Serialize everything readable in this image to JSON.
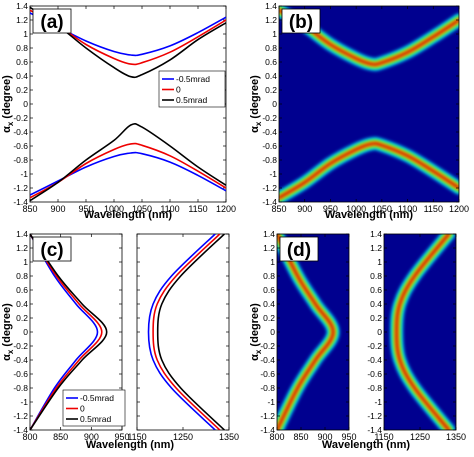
{
  "figure": {
    "y_label_main": "α",
    "y_label_sub": "x",
    "y_label_unit": " (degree)"
  },
  "colors": {
    "blue": "#0000ff",
    "red": "#ee0000",
    "black": "#000000",
    "map_background": "#00008f"
  },
  "chart_data": [
    {
      "panel": "(a)",
      "type": "line",
      "xlabel": "Wavelength (nm)",
      "ylabel": "αx (degree)",
      "xlim": [
        850,
        1200
      ],
      "ylim": [
        -1.4,
        1.4
      ],
      "xticks": [
        850,
        900,
        950,
        1000,
        1050,
        1100,
        1150,
        1200
      ],
      "yticks": [
        -1.4,
        -1.2,
        -1,
        -0.8,
        -0.6,
        -0.4,
        -0.2,
        0,
        0.2,
        0.4,
        0.6,
        0.8,
        1,
        1.2,
        1.4
      ],
      "legend": "right",
      "series": [
        {
          "name": "-0.5mrad",
          "color": "#0000ff",
          "upper": {
            "x": [
              850,
              900,
              950,
              1000,
              1030,
              1050,
              1100,
              1150,
              1200
            ],
            "y": [
              1.3,
              1.1,
              0.9,
              0.75,
              0.7,
              0.71,
              0.83,
              1.02,
              1.24
            ]
          },
          "lower": {
            "x": [
              850,
              900,
              950,
              1000,
              1030,
              1050,
              1100,
              1150,
              1200
            ],
            "y": [
              -1.3,
              -1.1,
              -0.9,
              -0.75,
              -0.7,
              -0.71,
              -0.83,
              -1.02,
              -1.24
            ]
          }
        },
        {
          "name": "0",
          "color": "#ee0000",
          "upper": {
            "x": [
              850,
              900,
              950,
              1000,
              1030,
              1050,
              1100,
              1150,
              1200
            ],
            "y": [
              1.34,
              1.12,
              0.85,
              0.65,
              0.57,
              0.59,
              0.74,
              0.96,
              1.2
            ]
          },
          "lower": {
            "x": [
              850,
              900,
              950,
              1000,
              1030,
              1050,
              1100,
              1150,
              1200
            ],
            "y": [
              -1.34,
              -1.12,
              -0.85,
              -0.65,
              -0.57,
              -0.59,
              -0.74,
              -0.96,
              -1.2
            ]
          }
        },
        {
          "name": "0.5mrad",
          "color": "#000000",
          "upper": {
            "x": [
              850,
              900,
              950,
              1000,
              1030,
              1050,
              1100,
              1150,
              1200
            ],
            "y": [
              1.38,
              1.12,
              0.8,
              0.52,
              0.39,
              0.42,
              0.63,
              0.92,
              1.16
            ]
          },
          "lower": {
            "x": [
              850,
              900,
              950,
              1000,
              1030,
              1050,
              1100,
              1150,
              1200
            ],
            "y": [
              -1.38,
              -1.12,
              -0.8,
              -0.52,
              -0.3,
              -0.33,
              -0.6,
              -0.9,
              -1.16
            ]
          }
        }
      ]
    },
    {
      "panel": "(b)",
      "type": "heatmap",
      "xlabel": "Wavelength (nm)",
      "ylabel": "αx (degree)",
      "xlim": [
        850,
        1200
      ],
      "ylim": [
        -1.4,
        1.4
      ],
      "xticks": [
        850,
        900,
        950,
        1000,
        1050,
        1100,
        1150,
        1200
      ],
      "yticks": [
        -1.4,
        -1.2,
        -1,
        -0.8,
        -0.6,
        -0.4,
        -0.2,
        0,
        0.2,
        0.4,
        0.6,
        0.8,
        1,
        1.2,
        1.4
      ],
      "bands": [
        {
          "x": [
            850,
            900,
            950,
            1000,
            1030,
            1050,
            1100,
            1150,
            1200
          ],
          "y": [
            1.34,
            1.12,
            0.85,
            0.65,
            0.57,
            0.59,
            0.74,
            0.96,
            1.2
          ]
        },
        {
          "x": [
            850,
            900,
            950,
            1000,
            1030,
            1050,
            1100,
            1150,
            1200
          ],
          "y": [
            -1.34,
            -1.12,
            -0.85,
            -0.65,
            -0.57,
            -0.59,
            -0.74,
            -0.96,
            -1.2
          ]
        }
      ]
    },
    {
      "panel": "(c)",
      "type": "line",
      "xlabel": "Wavelength (nm)",
      "ylabel": "αx (degree)",
      "ylim": [
        -1.4,
        1.4
      ],
      "yticks": [
        -1.4,
        -1.2,
        -1,
        -0.8,
        -0.6,
        -0.4,
        -0.2,
        0,
        0.2,
        0.4,
        0.6,
        0.8,
        1,
        1.2,
        1.4
      ],
      "subplots": [
        {
          "xlim": [
            800,
            950
          ],
          "xticks": [
            800,
            850,
            900,
            950
          ]
        },
        {
          "xlim": [
            1150,
            1350
          ],
          "xticks": [
            1150,
            1250,
            1350
          ]
        }
      ],
      "legend": "bottom-left",
      "series": [
        {
          "name": "-0.5mrad",
          "color": "#0000ff",
          "left": {
            "x": [
              800,
              840,
              875,
              910,
              875,
              840,
              800
            ],
            "y": [
              1.4,
              0.8,
              0.4,
              0,
              -0.4,
              -0.8,
              -1.4
            ]
          },
          "right": {
            "x": [
              1320,
              1225,
              1185,
              1175,
              1185,
              1225,
              1320
            ],
            "y": [
              1.4,
              0.8,
              0.4,
              0,
              -0.4,
              -0.8,
              -1.4
            ]
          }
        },
        {
          "name": "0",
          "color": "#ee0000",
          "left": {
            "x": [
              800,
              843,
              880,
              917,
              880,
              843,
              800
            ],
            "y": [
              1.4,
              0.8,
              0.4,
              0,
              -0.4,
              -0.8,
              -1.4
            ]
          },
          "right": {
            "x": [
              1330,
              1235,
              1194,
              1185,
              1194,
              1235,
              1330
            ],
            "y": [
              1.4,
              0.8,
              0.4,
              0,
              -0.4,
              -0.8,
              -1.4
            ]
          }
        },
        {
          "name": "0.5mrad",
          "color": "#000000",
          "left": {
            "x": [
              800,
              846,
              885,
              925,
              885,
              846,
              800
            ],
            "y": [
              1.4,
              0.8,
              0.4,
              0,
              -0.4,
              -0.8,
              -1.4
            ]
          },
          "right": {
            "x": [
              1340,
              1245,
              1204,
              1195,
              1204,
              1245,
              1340
            ],
            "y": [
              1.4,
              0.8,
              0.4,
              0,
              -0.4,
              -0.8,
              -1.4
            ]
          }
        }
      ]
    },
    {
      "panel": "(d)",
      "type": "heatmap",
      "xlabel": "Wavelength (nm)",
      "ylabel": "αx (degree)",
      "ylim": [
        -1.4,
        1.4
      ],
      "yticks": [
        -1.4,
        -1.2,
        -1,
        -0.8,
        -0.6,
        -0.4,
        -0.2,
        0,
        0.2,
        0.4,
        0.6,
        0.8,
        1,
        1.2,
        1.4
      ],
      "subplots": [
        {
          "xlim": [
            800,
            950
          ],
          "xticks": [
            800,
            850,
            900,
            950
          ]
        },
        {
          "xlim": [
            1150,
            1350
          ],
          "xticks": [
            1150,
            1250,
            1350
          ]
        }
      ],
      "bands": [
        {
          "x": [
            800,
            843,
            880,
            917,
            880,
            843,
            800
          ],
          "y": [
            1.4,
            0.8,
            0.4,
            0,
            -0.4,
            -0.8,
            -1.4
          ]
        },
        {
          "x": [
            1330,
            1235,
            1194,
            1185,
            1194,
            1235,
            1330
          ],
          "y": [
            1.4,
            0.8,
            0.4,
            0,
            -0.4,
            -0.8,
            -1.4
          ]
        }
      ]
    }
  ]
}
